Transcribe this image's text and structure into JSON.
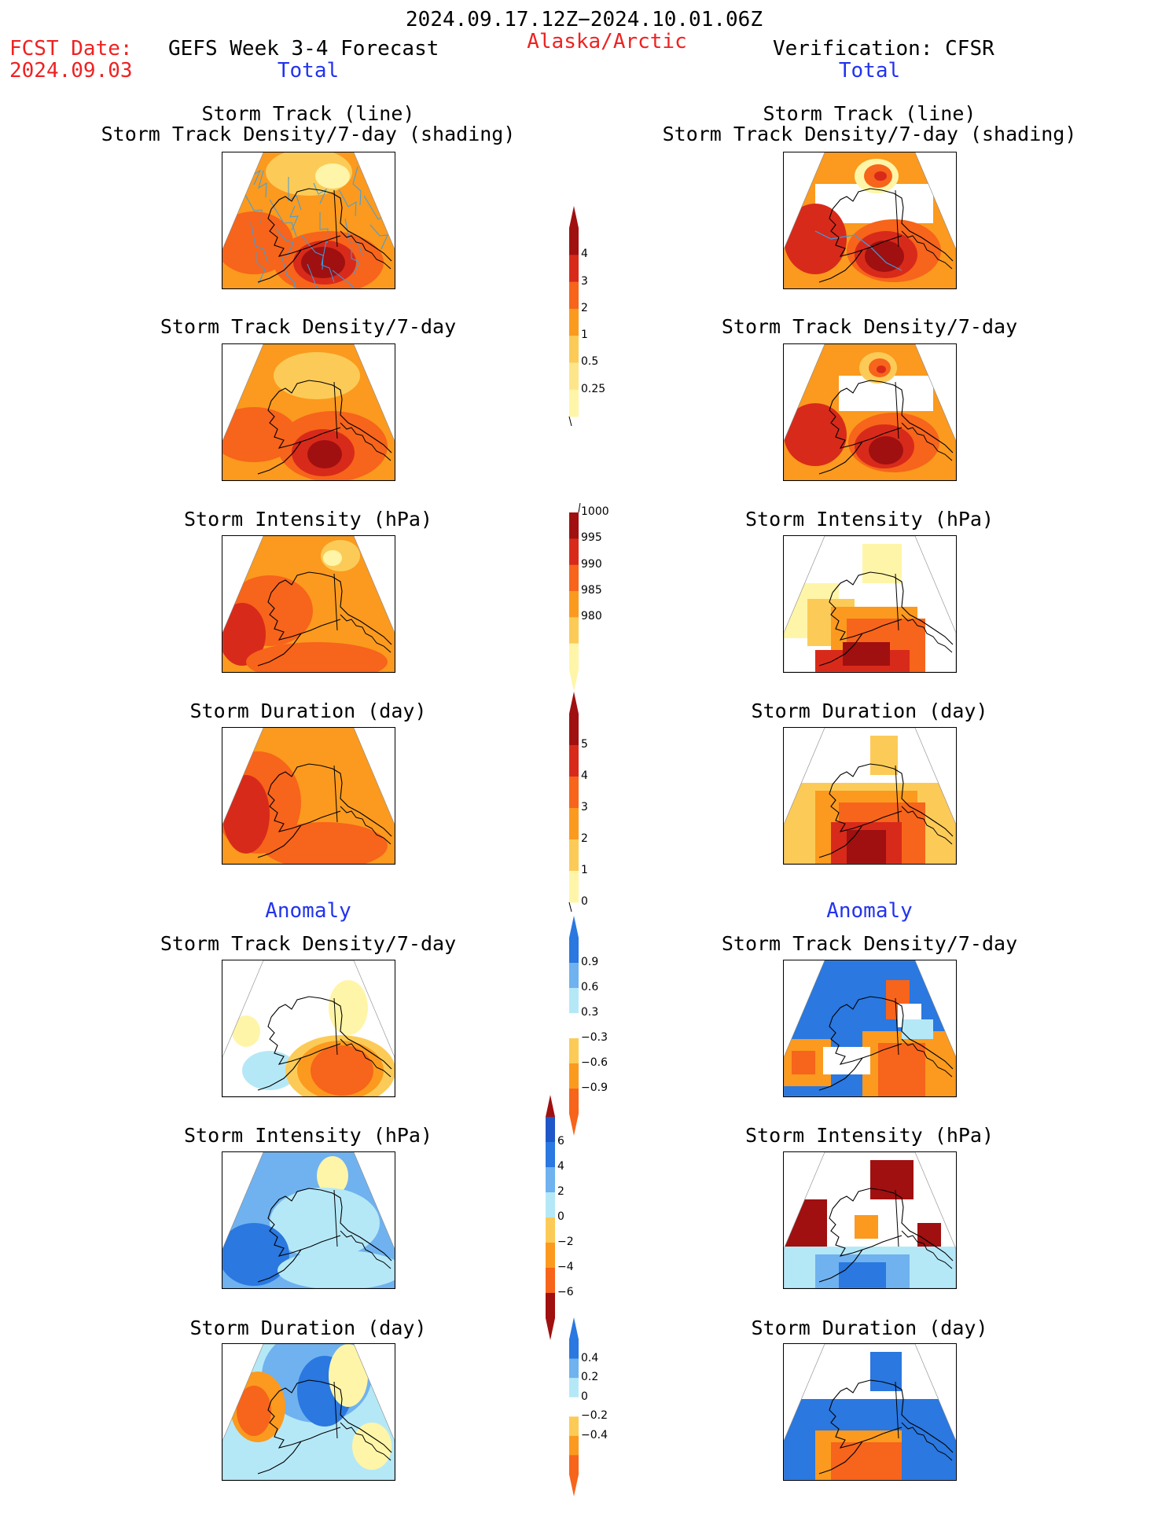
{
  "header": {
    "period": "2024.09.17.12Z−2024.10.01.06Z",
    "fcst_label": "FCST Date:",
    "fcst_date": "2024.09.03",
    "forecast_title": "GEFS Week 3-4 Forecast",
    "region": "Alaska/Arctic",
    "verification": "Verification: CFSR",
    "left_total": "Total",
    "right_total": "Total",
    "left_anomaly": "Anomaly",
    "right_anomaly": "Anomaly"
  },
  "panel_titles": {
    "track_line": "Storm Track (line)",
    "track_shading": "Storm Track Density/7-day (shading)",
    "density": "Storm Track Density/7-day",
    "intensity": "Storm Intensity (hPa)",
    "duration": "Storm Duration (day)"
  },
  "colorbars": {
    "density": [
      "0.25",
      "0.5",
      "1",
      "2",
      "3",
      "4"
    ],
    "intensity": [
      "980",
      "985",
      "990",
      "995",
      "1000"
    ],
    "duration": [
      "0",
      "1",
      "2",
      "3",
      "4",
      "5"
    ],
    "density_anom": [
      "0.9",
      "0.6",
      "0.3",
      "−0.3",
      "−0.6",
      "−0.9"
    ],
    "intensity_anom": [
      "6",
      "4",
      "2",
      "0",
      "−2",
      "−4",
      "−6"
    ],
    "duration_anom": [
      "0.4",
      "0.2",
      "0",
      "−0.2",
      "−0.4"
    ]
  },
  "colors": {
    "pale_yellow": "#fff5a8",
    "light_orange": "#fccb57",
    "orange": "#fb9a1e",
    "dark_orange": "#f7641b",
    "red": "#d82a1a",
    "dark_red": "#a01010",
    "light_blue": "#b5e8f7",
    "mid_blue": "#6fb2ef",
    "blue": "#2a78e0",
    "dark_blue": "#1f57c8",
    "track_line": "#3a9fe6"
  }
}
